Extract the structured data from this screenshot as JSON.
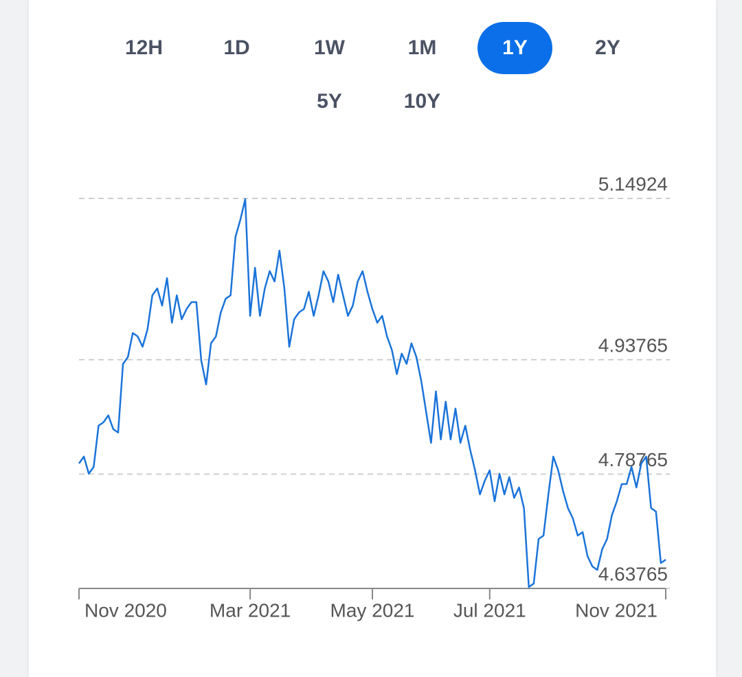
{
  "range_buttons": [
    {
      "label": "12H"
    },
    {
      "label": "1D"
    },
    {
      "label": "1W"
    },
    {
      "label": "1M"
    },
    {
      "label": "1Y",
      "selected": true
    },
    {
      "label": "2Y"
    },
    {
      "label": "5Y"
    },
    {
      "label": "10Y"
    }
  ],
  "chart_data": {
    "type": "line",
    "color": "#1a73d9",
    "grid": true,
    "ylim": [
      4.63765,
      5.14924
    ],
    "yticks": [
      4.63765,
      4.78765,
      4.93765,
      5.14924
    ],
    "categories": [
      "Nov 2020",
      null,
      null,
      null,
      null,
      null,
      null,
      null,
      null,
      null,
      null,
      null,
      null,
      null,
      null,
      null,
      null,
      null,
      null,
      null,
      null,
      null,
      null,
      null,
      null,
      null,
      null,
      null,
      null,
      null,
      null,
      null,
      null,
      null,
      null,
      "Mar 2021",
      null,
      null,
      null,
      null,
      null,
      null,
      null,
      null,
      null,
      null,
      null,
      null,
      null,
      null,
      null,
      null,
      null,
      null,
      null,
      null,
      null,
      null,
      null,
      null,
      "May 2021",
      null,
      null,
      null,
      null,
      null,
      null,
      null,
      null,
      null,
      null,
      null,
      null,
      null,
      null,
      null,
      null,
      null,
      null,
      null,
      null,
      null,
      null,
      null,
      "Jul 2021",
      null,
      null,
      null,
      null,
      null,
      null,
      null,
      null,
      null,
      null,
      null,
      null,
      null,
      null,
      null,
      null,
      null,
      null,
      null,
      null,
      null,
      null,
      null,
      null,
      null,
      null,
      null,
      null,
      null,
      null,
      null,
      null,
      null,
      null,
      null,
      "Nov 2021"
    ],
    "values": [
      4.8016,
      4.8106,
      4.7881,
      4.7971,
      4.8511,
      4.8556,
      4.8646,
      4.8466,
      4.8421,
      4.9322,
      4.9412,
      4.9727,
      4.9682,
      4.9547,
      4.9772,
      5.0222,
      5.0312,
      5.0087,
      5.0448,
      4.9862,
      5.0222,
      4.9907,
      5.0042,
      5.0132,
      5.0132,
      4.9367,
      4.9052,
      4.9592,
      4.9682,
      4.9997,
      5.0177,
      5.0222,
      5.0988,
      5.1213,
      5.1483,
      4.9952,
      5.0583,
      4.9952,
      5.0312,
      5.0538,
      5.0403,
      5.0808,
      5.0312,
      4.9547,
      4.9907,
      4.9997,
      5.0042,
      5.0268,
      4.9952,
      5.0222,
      5.0538,
      5.0403,
      5.0132,
      5.0493,
      5.0222,
      4.9952,
      5.0087,
      5.0403,
      5.0538,
      5.0268,
      5.0042,
      4.9862,
      4.9952,
      4.9682,
      4.9502,
      4.9187,
      4.9457,
      4.9322,
      4.9592,
      4.9412,
      4.9097,
      4.8691,
      4.8286,
      4.8962,
      4.8331,
      4.8826,
      4.8331,
      4.8736,
      4.8286,
      4.8511,
      4.8196,
      4.7926,
      4.761,
      4.7791,
      4.7926,
      4.752,
      4.7881,
      4.761,
      4.7836,
      4.7565,
      4.7701,
      4.743,
      4.6395,
      4.644,
      4.7025,
      4.707,
      4.761,
      4.8106,
      4.7926,
      4.7655,
      4.743,
      4.7295,
      4.707,
      4.7115,
      4.68,
      4.6665,
      4.662,
      4.689,
      4.7025,
      4.734,
      4.752,
      4.7745,
      4.7745,
      4.7971,
      4.7701,
      4.8016,
      4.8106,
      4.743,
      4.7385,
      4.671,
      4.6754
    ]
  }
}
